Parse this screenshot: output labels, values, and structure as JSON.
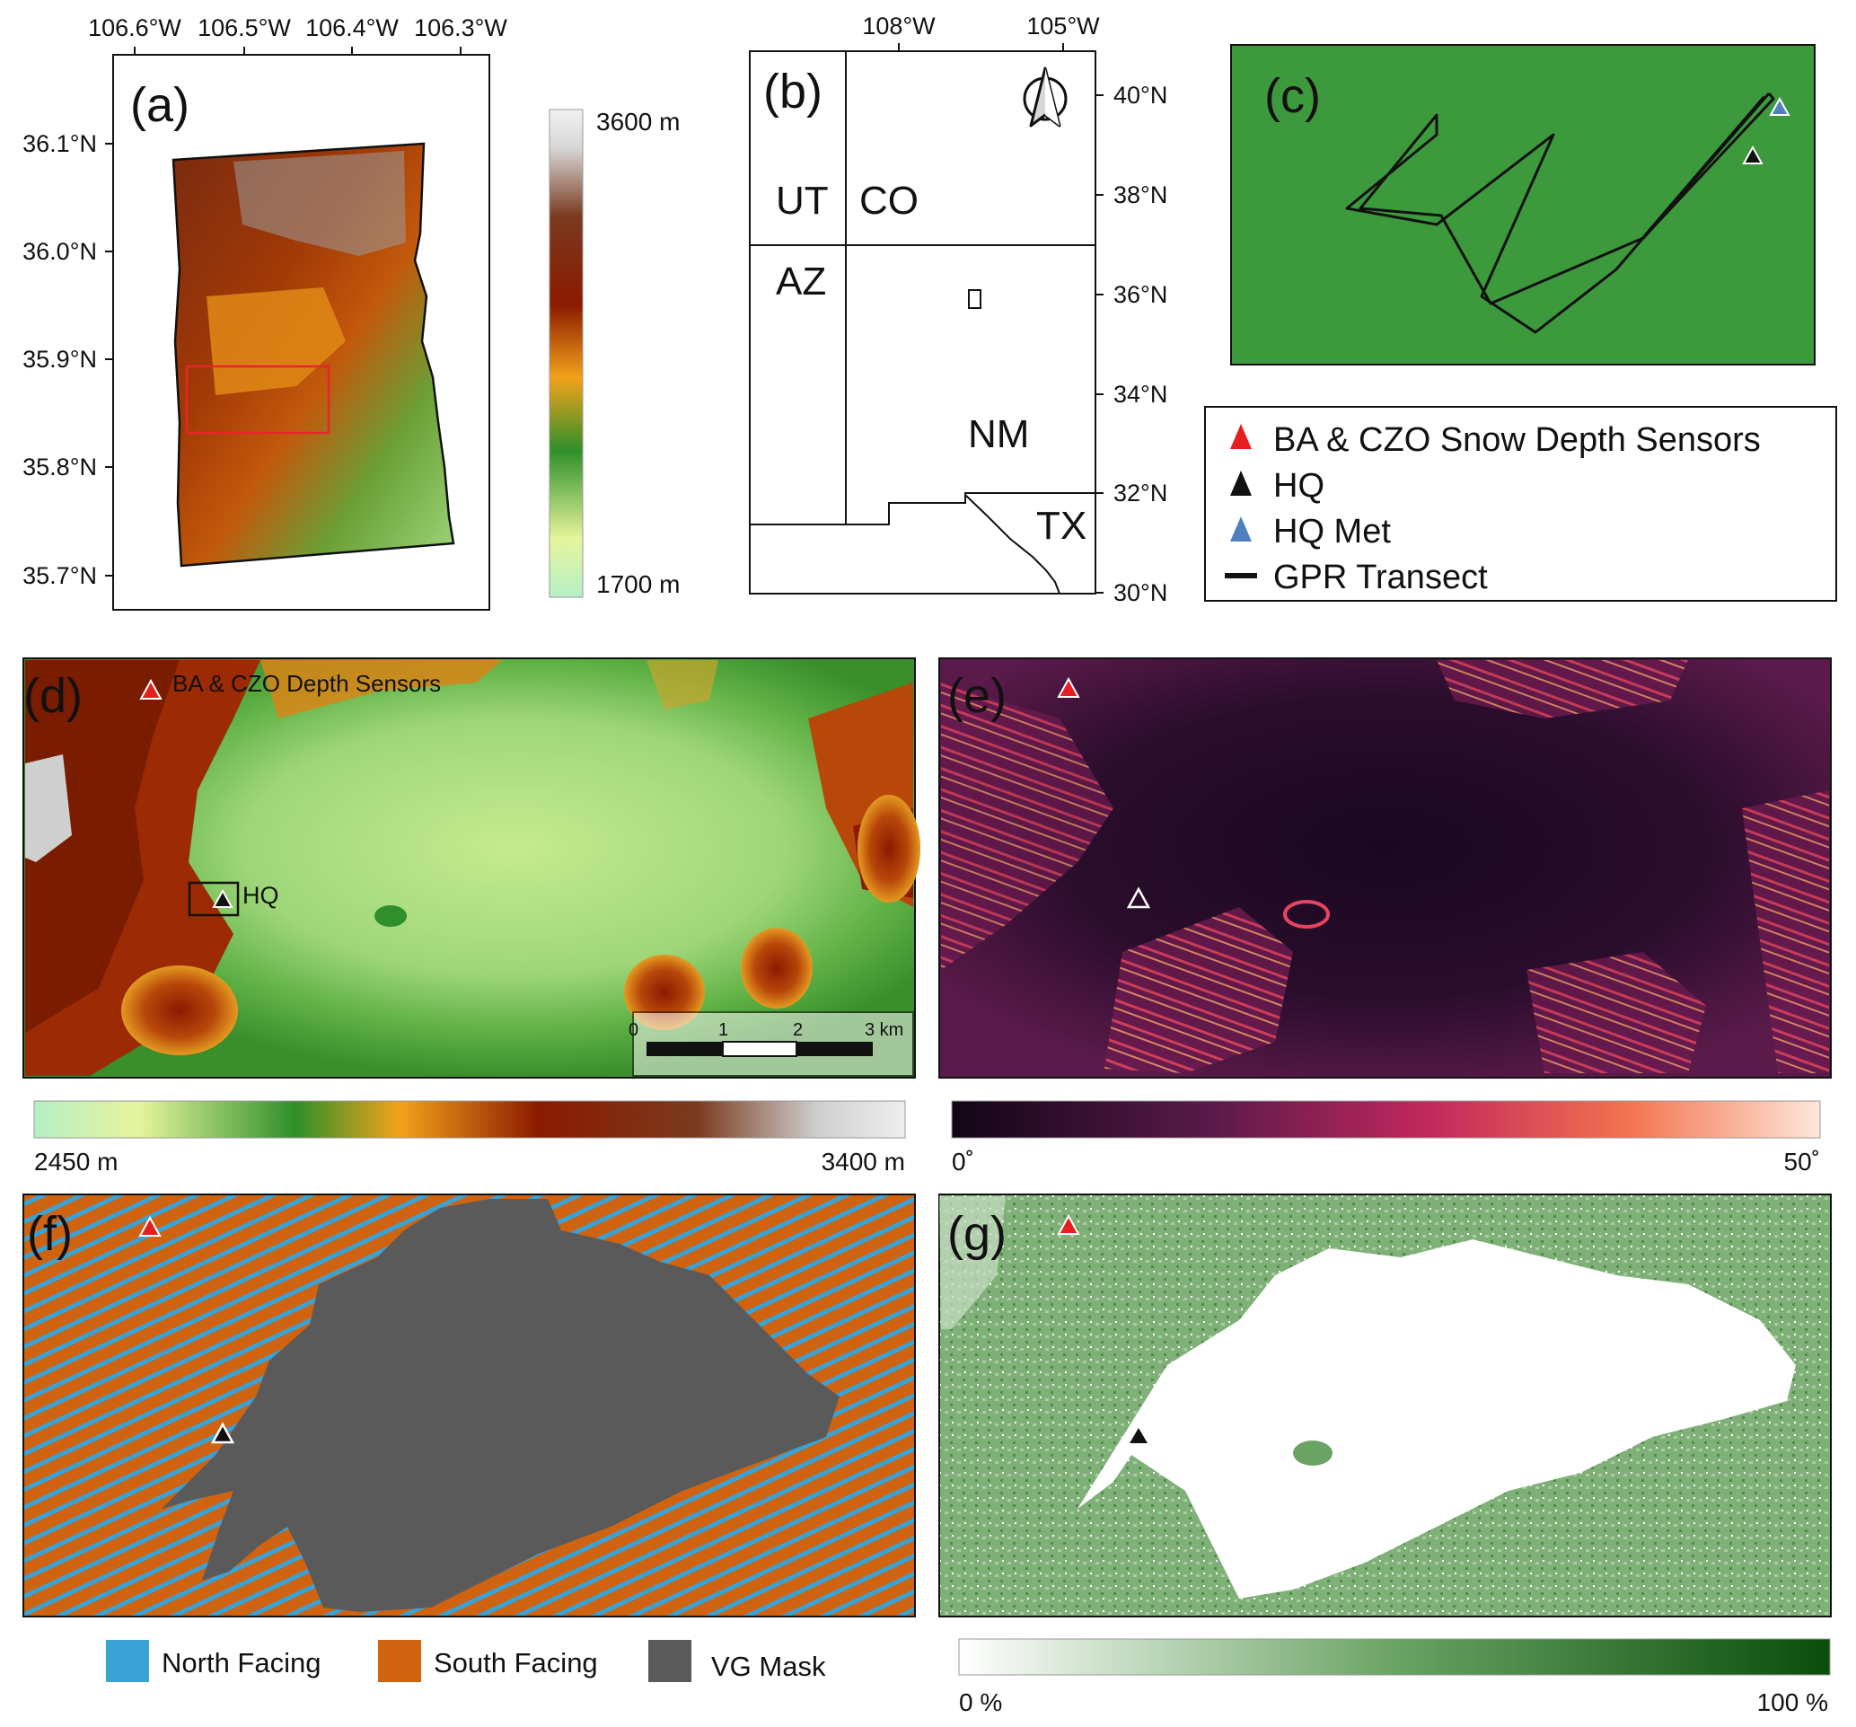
{
  "colors": {
    "elev_ramp": [
      "#b6efc6",
      "#e6f59c",
      "#2f8f2a",
      "#f2a21a",
      "#8b1a00",
      "#7a3a1e",
      "#d6d6d6",
      "#f2f2f2"
    ],
    "slope_ramp": [
      "#120516",
      "#5a1a4a",
      "#c3285d",
      "#f3734f",
      "#fde7d8"
    ],
    "veg_ramp": [
      "#ffffff",
      "#6aa363",
      "#0a4d0b"
    ],
    "north_facing": "#3aa2d5",
    "south_facing": "#cf6310",
    "vg_mask": "#5a5a5a",
    "red_marker": "#e51f1f",
    "blue_marker": "#4f81c1",
    "panel_c_bg": "#3d9a3c"
  },
  "panel_a": {
    "label": "(a)",
    "lon_ticks": [
      "106.6°W",
      "106.5°W",
      "106.4°W",
      "106.3°W"
    ],
    "lat_ticks": [
      "36.1°N",
      "36.0°N",
      "35.9°N",
      "35.8°N",
      "35.7°N"
    ],
    "colorbar_max": "3600 m",
    "colorbar_min": "1700 m"
  },
  "panel_b": {
    "label": "(b)",
    "lon_ticks": [
      "108°W",
      "105°W"
    ],
    "lat_ticks": [
      "40°N",
      "38°N",
      "36°N",
      "34°N",
      "32°N",
      "30°N"
    ],
    "states": [
      "UT",
      "CO",
      "AZ",
      "NM",
      "TX"
    ],
    "north_arrow_icon": "north-arrow-icon"
  },
  "panel_c": {
    "label": "(c)"
  },
  "legend": {
    "items": [
      {
        "label": "BA & CZO Snow Depth Sensors",
        "symbol": "red-triangle-icon"
      },
      {
        "label": "HQ",
        "symbol": "black-triangle-icon"
      },
      {
        "label": "HQ Met",
        "symbol": "blue-triangle-icon"
      },
      {
        "label": "GPR Transect",
        "symbol": "black-line-icon"
      }
    ]
  },
  "panel_d": {
    "label": "(d)",
    "sensor_label": "BA & CZO Depth Sensors",
    "hq_label": "HQ",
    "scalebar_ticks": [
      "0",
      "1",
      "2",
      "3 km"
    ],
    "colorbar_min": "2450 m",
    "colorbar_max": "3400 m"
  },
  "panel_e": {
    "label": "(e)",
    "colorbar_min": "0˚",
    "colorbar_max": "50˚"
  },
  "panel_f": {
    "label": "(f)",
    "legend": [
      "North Facing",
      "South Facing",
      "VG Mask"
    ]
  },
  "panel_g": {
    "label": "(g)",
    "colorbar_min": "0 %",
    "colorbar_max": "100 %"
  }
}
